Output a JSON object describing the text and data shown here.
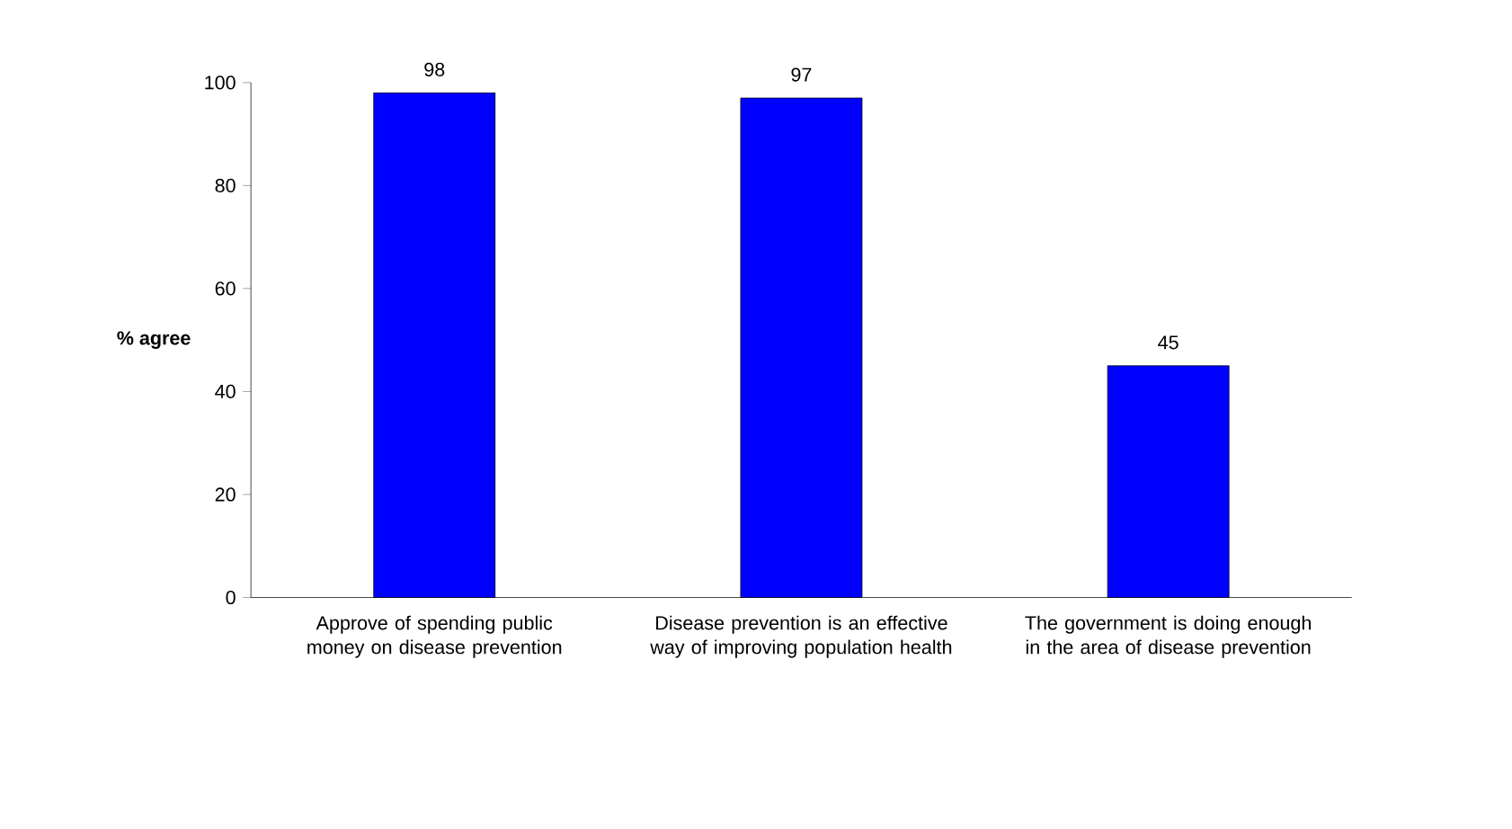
{
  "chart_data": {
    "type": "bar",
    "ylabel": "**% agree**",
    "categories": [
      "Approve of spending public money on disease prevention",
      "Disease prevention is an effective way of improving population health",
      "The government is doing enough in the area of disease prevention"
    ],
    "values": [
      98,
      97,
      45
    ],
    "color": "#0000ff",
    "ylim": [
      0,
      100
    ],
    "yticks": [
      0,
      20,
      40,
      60,
      80,
      100
    ],
    "data_labels": true
  }
}
